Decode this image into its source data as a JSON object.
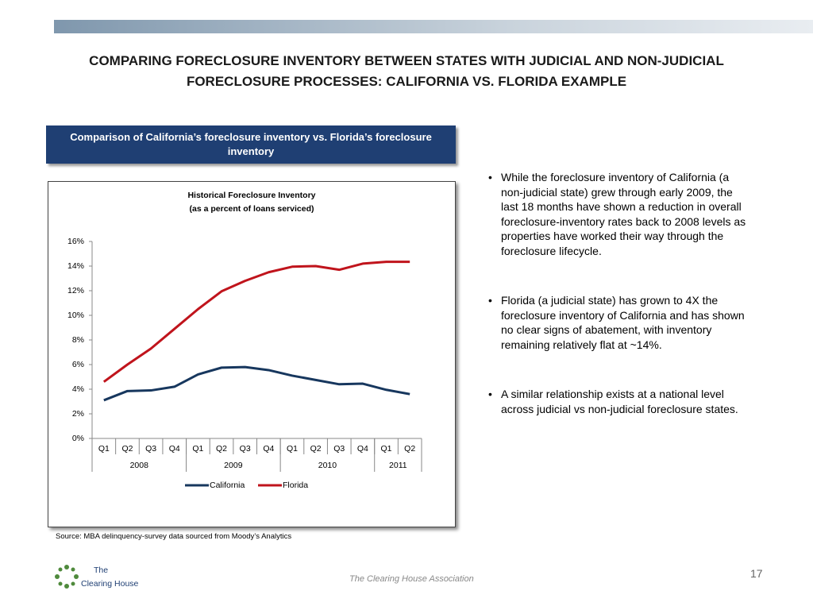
{
  "header": {
    "title": "COMPARING FORECLOSURE INVENTORY BETWEEN STATES WITH JUDICIAL AND NON-JUDICIAL FORECLOSURE PROCESSES:  CALIFORNIA VS. FLORIDA EXAMPLE"
  },
  "panel_title": "Comparison of California’s foreclosure inventory vs. Florida’s foreclosure inventory",
  "chart_data": {
    "type": "line",
    "title": "Historical Foreclosure Inventory",
    "subtitle": "(as a percent of loans serviced)",
    "categories": [
      "Q1",
      "Q2",
      "Q3",
      "Q4",
      "Q1",
      "Q2",
      "Q3",
      "Q4",
      "Q1",
      "Q2",
      "Q3",
      "Q4",
      "Q1",
      "Q2"
    ],
    "groups": [
      "2008",
      "2009",
      "2010",
      "2011"
    ],
    "series": [
      {
        "name": "California",
        "color": "#17375e",
        "values": [
          3.1,
          3.85,
          3.9,
          4.2,
          5.2,
          5.75,
          5.8,
          5.55,
          5.1,
          4.75,
          4.4,
          4.45,
          3.95,
          3.6
        ]
      },
      {
        "name": "Florida",
        "color": "#c0141c",
        "values": [
          4.6,
          6.0,
          7.3,
          8.9,
          10.5,
          11.95,
          12.8,
          13.5,
          13.95,
          14.0,
          13.7,
          14.2,
          14.35,
          14.35
        ]
      }
    ],
    "ylim": [
      0,
      16
    ],
    "yticks": [
      {
        "value": 0,
        "label": "0%"
      },
      {
        "value": 2,
        "label": "2%"
      },
      {
        "value": 4,
        "label": "4%"
      },
      {
        "value": 6,
        "label": "6%"
      },
      {
        "value": 8,
        "label": "8%"
      },
      {
        "value": 10,
        "label": "10%"
      },
      {
        "value": 12,
        "label": "12%"
      },
      {
        "value": 14,
        "label": "14%"
      },
      {
        "value": 16,
        "label": "16%"
      }
    ],
    "legend": "bottom"
  },
  "bullets": [
    "While the foreclosure inventory of California (a non-judicial state) grew through early 2009, the last 18 months have shown a reduction in overall foreclosure-inventory rates back to 2008 levels as properties have worked their way through the foreclosure lifecycle.",
    "Florida (a judicial state) has grown to 4X the foreclosure inventory of California and has shown no clear signs of abatement, with inventory remaining relatively flat at ~14%.",
    "A similar relationship exists at a national level across judicial vs non-judicial foreclosure states."
  ],
  "source": "Source:  MBA delinquency-survey data sourced from Moody’s Analytics",
  "footer": {
    "logo_top": "The",
    "logo_bottom": "Clearing House",
    "center": "The Clearing House Association",
    "page_number": "17"
  }
}
